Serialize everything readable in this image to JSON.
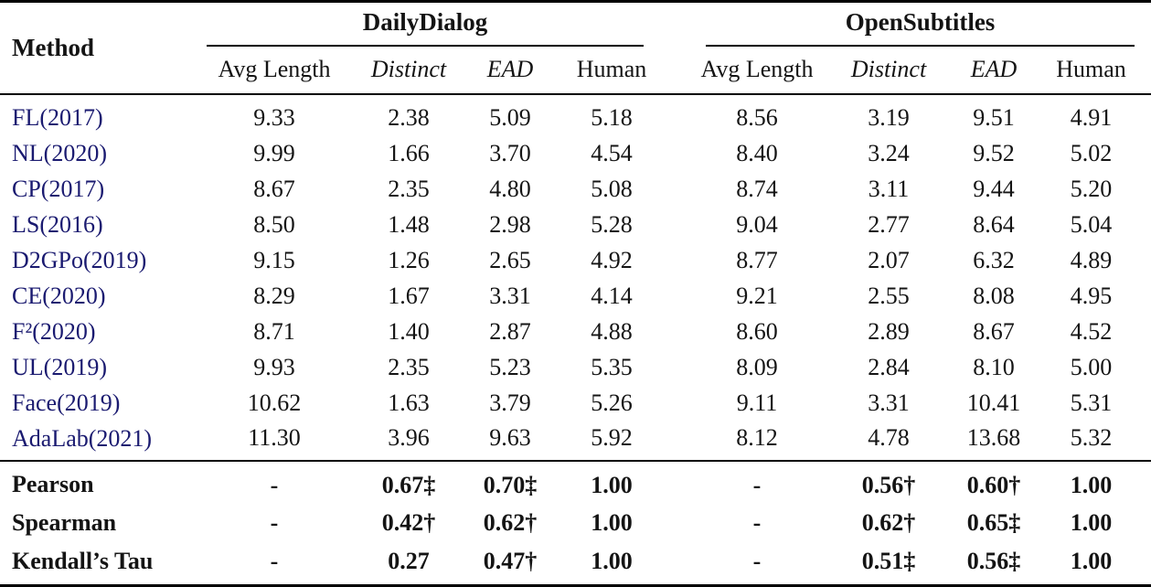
{
  "table": {
    "link_color": "#1a1a70",
    "header": {
      "method_label": "Method",
      "groups": [
        {
          "label": "DailyDialog",
          "subcolumns": [
            {
              "label": "Avg Length",
              "italic": false
            },
            {
              "label": "Distinct",
              "italic": true
            },
            {
              "label": "EAD",
              "italic": true
            },
            {
              "label": "Human",
              "italic": false
            }
          ]
        },
        {
          "label": "OpenSubtitles",
          "subcolumns": [
            {
              "label": "Avg Length",
              "italic": false
            },
            {
              "label": "Distinct",
              "italic": true
            },
            {
              "label": "EAD",
              "italic": true
            },
            {
              "label": "Human",
              "italic": false
            }
          ]
        }
      ]
    },
    "method_rows": [
      {
        "method": "FL(2017)",
        "dailydialog": [
          "9.33",
          "2.38",
          "5.09",
          "5.18"
        ],
        "opensubtitles": [
          "8.56",
          "3.19",
          "9.51",
          "4.91"
        ]
      },
      {
        "method": "NL(2020)",
        "dailydialog": [
          "9.99",
          "1.66",
          "3.70",
          "4.54"
        ],
        "opensubtitles": [
          "8.40",
          "3.24",
          "9.52",
          "5.02"
        ]
      },
      {
        "method": "CP(2017)",
        "dailydialog": [
          "8.67",
          "2.35",
          "4.80",
          "5.08"
        ],
        "opensubtitles": [
          "8.74",
          "3.11",
          "9.44",
          "5.20"
        ]
      },
      {
        "method": "LS(2016)",
        "dailydialog": [
          "8.50",
          "1.48",
          "2.98",
          "5.28"
        ],
        "opensubtitles": [
          "9.04",
          "2.77",
          "8.64",
          "5.04"
        ]
      },
      {
        "method": "D2GPo(2019)",
        "dailydialog": [
          "9.15",
          "1.26",
          "2.65",
          "4.92"
        ],
        "opensubtitles": [
          "8.77",
          "2.07",
          "6.32",
          "4.89"
        ]
      },
      {
        "method": "CE(2020)",
        "dailydialog": [
          "8.29",
          "1.67",
          "3.31",
          "4.14"
        ],
        "opensubtitles": [
          "9.21",
          "2.55",
          "8.08",
          "4.95"
        ]
      },
      {
        "method": "F²(2020)",
        "dailydialog": [
          "8.71",
          "1.40",
          "2.87",
          "4.88"
        ],
        "opensubtitles": [
          "8.60",
          "2.89",
          "8.67",
          "4.52"
        ]
      },
      {
        "method": "UL(2019)",
        "dailydialog": [
          "9.93",
          "2.35",
          "5.23",
          "5.35"
        ],
        "opensubtitles": [
          "8.09",
          "2.84",
          "8.10",
          "5.00"
        ]
      },
      {
        "method": "Face(2019)",
        "dailydialog": [
          "10.62",
          "1.63",
          "3.79",
          "5.26"
        ],
        "opensubtitles": [
          "9.11",
          "3.31",
          "10.41",
          "5.31"
        ]
      },
      {
        "method": "AdaLab(2021)",
        "dailydialog": [
          "11.30",
          "3.96",
          "9.63",
          "5.92"
        ],
        "opensubtitles": [
          "8.12",
          "4.78",
          "13.68",
          "5.32"
        ]
      }
    ],
    "correlation_rows": [
      {
        "method": "Pearson",
        "dailydialog": [
          "-",
          "0.67‡",
          "0.70‡",
          "1.00"
        ],
        "opensubtitles": [
          "-",
          "0.56†",
          "0.60†",
          "1.00"
        ]
      },
      {
        "method": "Spearman",
        "dailydialog": [
          "-",
          "0.42†",
          "0.62†",
          "1.00"
        ],
        "opensubtitles": [
          "-",
          "0.62†",
          "0.65‡",
          "1.00"
        ]
      },
      {
        "method": "Kendall’s Tau",
        "dailydialog": [
          "-",
          "0.27",
          "0.47†",
          "1.00"
        ],
        "opensubtitles": [
          "-",
          "0.51‡",
          "0.56‡",
          "1.00"
        ]
      }
    ]
  }
}
